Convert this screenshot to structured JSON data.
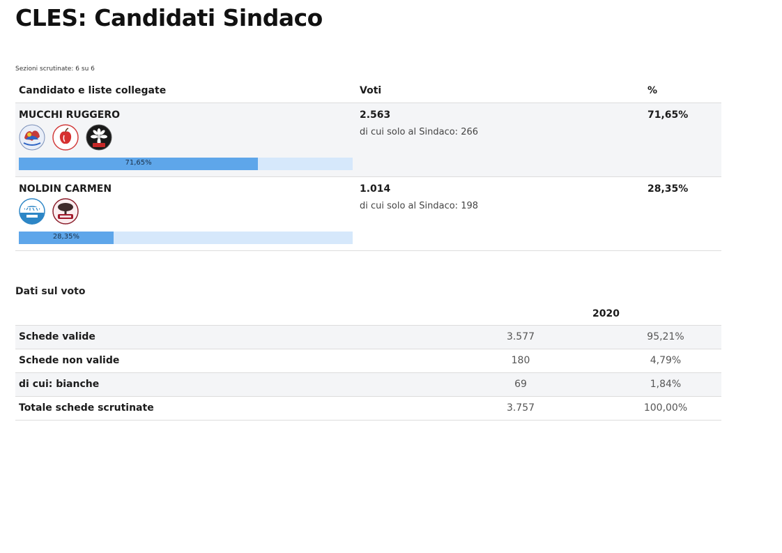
{
  "title": "CLES: Candidati Sindaco",
  "sezioni": "Sezioni scrutinate: 6 su 6",
  "candidati_table": {
    "headers": {
      "candidato": "Candidato e liste collegate",
      "voti": "Voti",
      "percent": "%"
    },
    "rows": [
      {
        "name": "MUCCHI RUGGERO",
        "votes": "2.563",
        "votes_sub": "di cui solo al Sindaco: 266",
        "percent": "71,65%",
        "bar_label": "71,65%",
        "bar_fraction": 0.7165,
        "logos": [
          "cles-futura-logo",
          "apple-list-logo",
          "patt-edelweiss-logo"
        ]
      },
      {
        "name": "NOLDIN CARMEN",
        "votes": "1.014",
        "votes_sub": "di cui solo al Sindaco: 198",
        "percent": "28,35%",
        "bar_label": "28,35%",
        "bar_fraction": 0.2835,
        "logos": [
          "siamo-cles-logo",
          "tree-cles-logo"
        ]
      }
    ]
  },
  "dati": {
    "title": "Dati sul voto",
    "year": "2020",
    "rows": [
      {
        "label": "Schede valide",
        "value": "3.577",
        "percent": "95,21%"
      },
      {
        "label": "Schede non valide",
        "value": "180",
        "percent": "4,79%"
      },
      {
        "label": "di cui: bianche",
        "value": "69",
        "percent": "1,84%"
      },
      {
        "label": "Totale schede scrutinate",
        "value": "3.757",
        "percent": "100,00%"
      }
    ]
  },
  "colors": {
    "bar_fill": "#5ea6ea",
    "bar_track": "#d6e8fb",
    "row_alt": "#f4f5f7"
  }
}
